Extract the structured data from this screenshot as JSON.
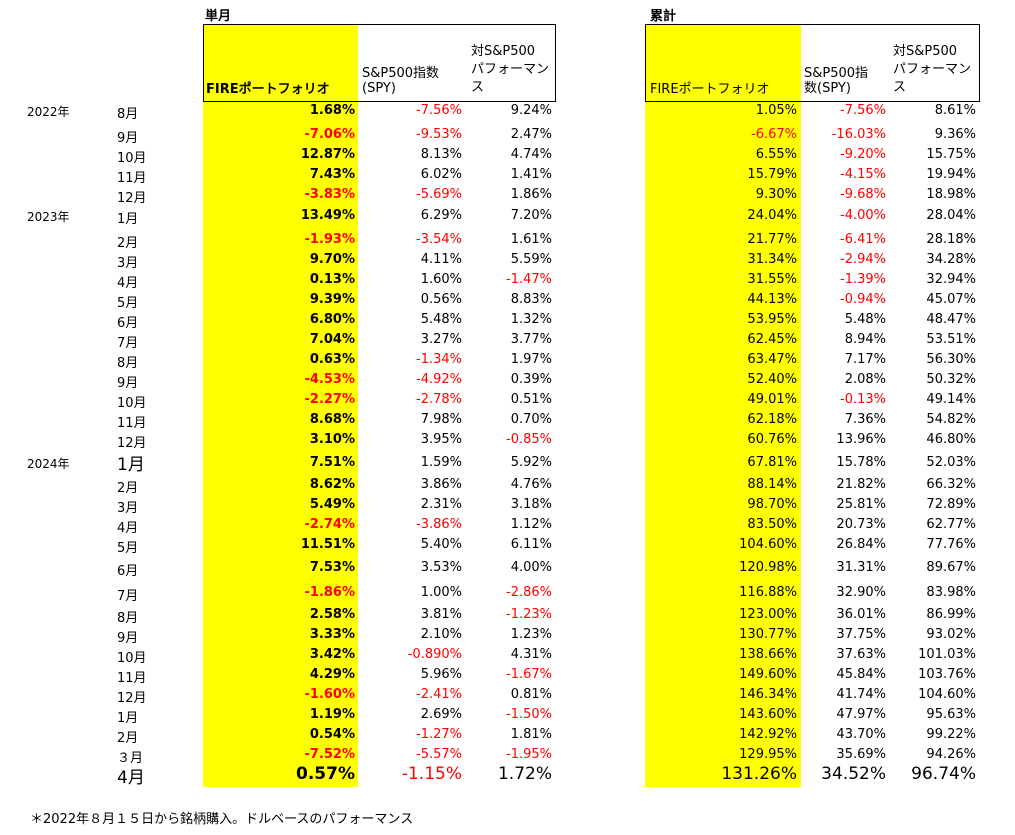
{
  "sections": {
    "monthly_title": "単月",
    "cumulative_title": "累計"
  },
  "headers": {
    "fire": "FIREポートフォリオ",
    "spy_line1": "S&P500指数",
    "spy_line2": "(SPY)",
    "vs_line1": "対S&P500",
    "vs_line2": "パフォーマン",
    "vs_line3": "ス",
    "c_fire": "FIREポートフォリオ",
    "c_spy_line1": "S&P500指",
    "c_spy_line2": "数(SPY)",
    "c_vs_line1": "対S&P500",
    "c_vs_line2": "パフォーマン",
    "c_vs_line3": "ス"
  },
  "rows": [
    {
      "year": "2022年",
      "month": "8月",
      "fire": "1.68%",
      "spy": "-7.56%",
      "vs": "9.24%",
      "cfire": "1.05%",
      "cspy": "-7.56%",
      "cvs": "8.61%"
    },
    {
      "year": "",
      "month": "9月",
      "fire": "-7.06%",
      "spy": "-9.53%",
      "vs": "2.47%",
      "cfire": "-6.67%",
      "cspy": "-16.03%",
      "cvs": "9.36%"
    },
    {
      "year": "",
      "month": "10月",
      "fire": "12.87%",
      "spy": "8.13%",
      "vs": "4.74%",
      "cfire": "6.55%",
      "cspy": "-9.20%",
      "cvs": "15.75%"
    },
    {
      "year": "",
      "month": "11月",
      "fire": "7.43%",
      "spy": "6.02%",
      "vs": "1.41%",
      "cfire": "15.79%",
      "cspy": "-4.15%",
      "cvs": "19.94%"
    },
    {
      "year": "",
      "month": "12月",
      "fire": "-3.83%",
      "spy": "-5.69%",
      "vs": "1.86%",
      "cfire": "9.30%",
      "cspy": "-9.68%",
      "cvs": "18.98%"
    },
    {
      "year": "2023年",
      "month": "1月",
      "fire": "13.49%",
      "spy": "6.29%",
      "vs": "7.20%",
      "cfire": "24.04%",
      "cspy": "-4.00%",
      "cvs": "28.04%"
    },
    {
      "year": "",
      "month": "2月",
      "fire": "-1.93%",
      "spy": "-3.54%",
      "vs": "1.61%",
      "cfire": "21.77%",
      "cspy": "-6.41%",
      "cvs": "28.18%"
    },
    {
      "year": "",
      "month": "3月",
      "fire": "9.70%",
      "spy": "4.11%",
      "vs": "5.59%",
      "cfire": "31.34%",
      "cspy": "-2.94%",
      "cvs": "34.28%"
    },
    {
      "year": "",
      "month": "4月",
      "fire": "0.13%",
      "spy": "1.60%",
      "vs": "-1.47%",
      "cfire": "31.55%",
      "cspy": "-1.39%",
      "cvs": "32.94%"
    },
    {
      "year": "",
      "month": "5月",
      "fire": "9.39%",
      "spy": "0.56%",
      "vs": "8.83%",
      "cfire": "44.13%",
      "cspy": "-0.94%",
      "cvs": "45.07%"
    },
    {
      "year": "",
      "month": "6月",
      "fire": "6.80%",
      "spy": "5.48%",
      "vs": "1.32%",
      "cfire": "53.95%",
      "cspy": "5.48%",
      "cvs": "48.47%"
    },
    {
      "year": "",
      "month": "7月",
      "fire": "7.04%",
      "spy": "3.27%",
      "vs": "3.77%",
      "cfire": "62.45%",
      "cspy": "8.94%",
      "cvs": "53.51%"
    },
    {
      "year": "",
      "month": "8月",
      "fire": "0.63%",
      "spy": "-1.34%",
      "vs": "1.97%",
      "cfire": "63.47%",
      "cspy": "7.17%",
      "cvs": "56.30%"
    },
    {
      "year": "",
      "month": "9月",
      "fire": "-4.53%",
      "spy": "-4.92%",
      "vs": "0.39%",
      "cfire": "52.40%",
      "cspy": "2.08%",
      "cvs": "50.32%"
    },
    {
      "year": "",
      "month": "10月",
      "fire": "-2.27%",
      "spy": "-2.78%",
      "vs": "0.51%",
      "cfire": "49.01%",
      "cspy": "-0.13%",
      "cvs": "49.14%"
    },
    {
      "year": "",
      "month": "11月",
      "fire": "8.68%",
      "spy": "7.98%",
      "vs": "0.70%",
      "cfire": "62.18%",
      "cspy": "7.36%",
      "cvs": "54.82%"
    },
    {
      "year": "",
      "month": "12月",
      "fire": "3.10%",
      "spy": "3.95%",
      "vs": "-0.85%",
      "cfire": "60.76%",
      "cspy": "13.96%",
      "cvs": "46.80%"
    },
    {
      "year": "2024年",
      "month": "1月",
      "fire": "7.51%",
      "spy": "1.59%",
      "vs": "5.92%",
      "cfire": "67.81%",
      "cspy": "15.78%",
      "cvs": "52.03%",
      "bigmonth": true
    },
    {
      "year": "",
      "month": "2月",
      "fire": "8.62%",
      "spy": "3.86%",
      "vs": "4.76%",
      "cfire": "88.14%",
      "cspy": "21.82%",
      "cvs": "66.32%"
    },
    {
      "year": "",
      "month": "3月",
      "fire": "5.49%",
      "spy": "2.31%",
      "vs": "3.18%",
      "cfire": "98.70%",
      "cspy": "25.81%",
      "cvs": "72.89%"
    },
    {
      "year": "",
      "month": "4月",
      "fire": "-2.74%",
      "spy": "-3.86%",
      "vs": "1.12%",
      "cfire": "83.50%",
      "cspy": "20.73%",
      "cvs": "62.77%"
    },
    {
      "year": "",
      "month": "5月",
      "fire": "11.51%",
      "spy": "5.40%",
      "vs": "6.11%",
      "cfire": "104.60%",
      "cspy": "26.84%",
      "cvs": "77.76%"
    },
    {
      "year": "",
      "month": "6月",
      "fire": "7.53%",
      "spy": "3.53%",
      "vs": "4.00%",
      "cfire": "120.98%",
      "cspy": "31.31%",
      "cvs": "89.67%"
    },
    {
      "year": "",
      "month": "7月",
      "fire": "-1.86%",
      "spy": "1.00%",
      "vs": "-2.86%",
      "cfire": "116.88%",
      "cspy": "32.90%",
      "cvs": "83.98%"
    },
    {
      "year": "",
      "month": "8月",
      "fire": "2.58%",
      "spy": "3.81%",
      "vs": "-1.23%",
      "cfire": "123.00%",
      "cspy": "36.01%",
      "cvs": "86.99%"
    },
    {
      "year": "",
      "month": "9月",
      "fire": "3.33%",
      "spy": "2.10%",
      "vs": "1.23%",
      "cfire": "130.77%",
      "cspy": "37.75%",
      "cvs": "93.02%"
    },
    {
      "year": "",
      "month": "10月",
      "fire": "3.42%",
      "spy": "-0.890%",
      "vs": "4.31%",
      "cfire": "138.66%",
      "cspy": "37.63%",
      "cvs": "101.03%"
    },
    {
      "year": "",
      "month": "11月",
      "fire": "4.29%",
      "spy": "5.96%",
      "vs": "-1.67%",
      "cfire": "149.60%",
      "cspy": "45.84%",
      "cvs": "103.76%"
    },
    {
      "year": "",
      "month": "12月",
      "fire": "-1.60%",
      "spy": "-2.41%",
      "vs": "0.81%",
      "cfire": "146.34%",
      "cspy": "41.74%",
      "cvs": "104.60%"
    },
    {
      "year": "",
      "month": "1月",
      "fire": "1.19%",
      "spy": "2.69%",
      "vs": "-1.50%",
      "cfire": "143.60%",
      "cspy": "47.97%",
      "cvs": "95.63%"
    },
    {
      "year": "",
      "month": "2月",
      "fire": "0.54%",
      "spy": "-1.27%",
      "vs": "1.81%",
      "cfire": "142.92%",
      "cspy": "43.70%",
      "cvs": "99.22%"
    },
    {
      "year": "",
      "month": "３月",
      "fire": "-7.52%",
      "spy": "-5.57%",
      "vs": "-1.95%",
      "cfire": "129.95%",
      "cspy": "35.69%",
      "cvs": "94.26%"
    },
    {
      "year": "",
      "month": "4月",
      "fire": "0.57%",
      "spy": "-1.15%",
      "vs": "1.72%",
      "cfire": "131.26%",
      "cspy": "34.52%",
      "cvs": "96.74%",
      "big": true
    }
  ],
  "footnote": "＊2022年８月１５日から銘柄購入。ドルベースのパフォーマンス"
}
